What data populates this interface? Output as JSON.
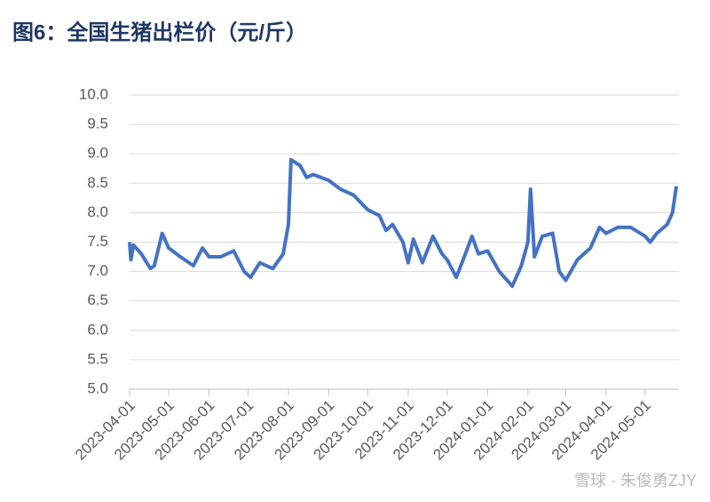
{
  "chart_data": {
    "type": "line",
    "title": "图6：全国生猪出栏价（元/斤）",
    "watermark": "雪球 · 朱俊勇ZJY",
    "series": [
      {
        "name": "全国生猪出栏价",
        "color": "#4472c4",
        "x": [
          "2023-04-01",
          "2023-04-02",
          "2023-04-04",
          "2023-04-10",
          "2023-04-17",
          "2023-04-20",
          "2023-04-26",
          "2023-05-01",
          "2023-05-10",
          "2023-05-20",
          "2023-05-27",
          "2023-06-01",
          "2023-06-10",
          "2023-06-20",
          "2023-06-28",
          "2023-07-03",
          "2023-07-10",
          "2023-07-20",
          "2023-07-28",
          "2023-08-01",
          "2023-08-03",
          "2023-08-10",
          "2023-08-15",
          "2023-08-20",
          "2023-09-01",
          "2023-09-10",
          "2023-09-20",
          "2023-10-01",
          "2023-10-10",
          "2023-10-15",
          "2023-10-20",
          "2023-10-28",
          "2023-11-01",
          "2023-11-05",
          "2023-11-12",
          "2023-11-20",
          "2023-11-27",
          "2023-12-01",
          "2023-12-08",
          "2023-12-15",
          "2023-12-20",
          "2023-12-25",
          "2024-01-01",
          "2024-01-10",
          "2024-01-20",
          "2024-01-27",
          "2024-02-01",
          "2024-02-03",
          "2024-02-06",
          "2024-02-12",
          "2024-02-20",
          "2024-02-25",
          "2024-03-01",
          "2024-03-10",
          "2024-03-20",
          "2024-03-27",
          "2024-04-01",
          "2024-04-10",
          "2024-04-20",
          "2024-05-01",
          "2024-05-05",
          "2024-05-10",
          "2024-05-18",
          "2024-05-22",
          "2024-05-25"
        ],
        "values": [
          7.5,
          7.2,
          7.45,
          7.3,
          7.05,
          7.1,
          7.65,
          7.4,
          7.25,
          7.1,
          7.4,
          7.25,
          7.25,
          7.35,
          7.0,
          6.9,
          7.15,
          7.05,
          7.3,
          7.8,
          8.9,
          8.8,
          8.6,
          8.65,
          8.55,
          8.4,
          8.3,
          8.05,
          7.95,
          7.7,
          7.8,
          7.5,
          7.15,
          7.55,
          7.15,
          7.6,
          7.3,
          7.2,
          6.9,
          7.3,
          7.6,
          7.3,
          7.35,
          7.0,
          6.75,
          7.1,
          7.5,
          8.4,
          7.25,
          7.6,
          7.65,
          7.0,
          6.85,
          7.2,
          7.4,
          7.75,
          7.65,
          7.75,
          7.75,
          7.6,
          7.5,
          7.65,
          7.8,
          8.0,
          8.45
        ]
      }
    ],
    "xlim": [
      "2023-04-01",
      "2024-05-27"
    ],
    "xticks": [
      "2023-04-01",
      "2023-05-01",
      "2023-06-01",
      "2023-07-01",
      "2023-08-01",
      "2023-09-01",
      "2023-10-01",
      "2023-11-01",
      "2023-12-01",
      "2024-01-01",
      "2024-02-01",
      "2024-03-01",
      "2024-04-01",
      "2024-05-01"
    ],
    "ylim": [
      5,
      10
    ],
    "yticks": [
      {
        "value": 5,
        "label": "5.0"
      },
      5.5,
      {
        "value": 6,
        "label": "6.0"
      },
      6.5,
      {
        "value": 7,
        "label": "7.0"
      },
      7.5,
      {
        "value": 8,
        "label": "8.0"
      },
      8.5,
      {
        "value": 9,
        "label": "9.0"
      },
      9.5,
      {
        "value": 10,
        "label": "10.0"
      }
    ],
    "grid": true
  }
}
